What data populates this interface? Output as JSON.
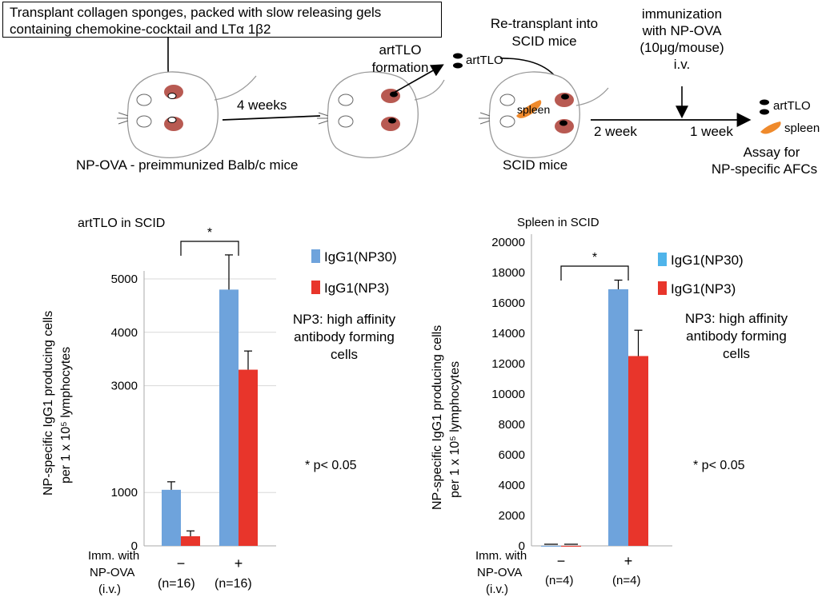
{
  "schematic": {
    "callout_line1": "Transplant collagen sponges, packed with slow releasing gels",
    "callout_line2": "containing chemokine-cocktail and LTα 1β2",
    "donor_label": "NP-OVA - preimmunized Balb/c mice",
    "weeks_4": "4 weeks",
    "artTLO_formation_1": "artTLO",
    "artTLO_formation_2": "formation",
    "artTLO_tag": "artTLO",
    "retransplant_1": "Re-transplant into",
    "retransplant_2": "SCID mice",
    "spleen_tag": "spleen",
    "scid_label": "SCID mice",
    "imm_1": "immunization",
    "imm_2": "with NP-OVA",
    "imm_3": "(10μg/mouse)",
    "imm_4": "i.v.",
    "week_2": "2 week",
    "week_1": "1 week",
    "out_artTLO": "artTLO",
    "out_spleen": "spleen",
    "assay_1": "Assay for",
    "assay_2": "NP-specific AFCs"
  },
  "colors": {
    "blue": "#6ea3dc",
    "red": "#e8352b",
    "spleen_orange": "#ef8a2c",
    "lymph_red": "#b85a52"
  },
  "chart_data": [
    {
      "type": "bar",
      "title": "artTLO in SCID",
      "ylabel_line1": "NP-specific IgG1 producing cells",
      "ylabel_line2": "per 1 x 10⁵ lymphocytes",
      "yticks": [
        "0",
        "1000",
        "3000",
        "4000",
        "5000"
      ],
      "ylim": [
        0,
        5000
      ],
      "categories": [
        "−",
        "+"
      ],
      "n_labels": [
        "(n=16)",
        "(n=16)"
      ],
      "xlabel_1": "Imm. with",
      "xlabel_2": "NP-OVA",
      "xlabel_3": "(i.v.)",
      "series": [
        {
          "name": "IgG1(NP30)",
          "values": [
            1050,
            4800
          ],
          "errors": [
            150,
            650
          ]
        },
        {
          "name": "IgG1(NP3)",
          "values": [
            180,
            3300
          ],
          "errors": [
            100,
            350
          ]
        }
      ],
      "significance": "*",
      "legend_note_1": "NP3: high affinity",
      "legend_note_2": "antibody forming",
      "legend_note_3": "cells",
      "pvalue_note": "* p< 0.05"
    },
    {
      "type": "bar",
      "title": "Spleen in SCID",
      "ylabel_line1": "NP-specific IgG1 producing cells",
      "ylabel_line2": "per 1 x 10⁵ lymphocytes",
      "yticks": [
        "0",
        "2000",
        "4000",
        "6000",
        "8000",
        "10000",
        "12000",
        "14000",
        "16000",
        "18000",
        "20000"
      ],
      "ylim": [
        0,
        20000
      ],
      "categories": [
        "−",
        "+"
      ],
      "n_labels": [
        "(n=4)",
        "(n=4)"
      ],
      "xlabel_1": "Imm. with",
      "xlabel_2": "NP-OVA",
      "xlabel_3": "(i.v.)",
      "series": [
        {
          "name": "IgG1(NP30)",
          "values": [
            0,
            16900
          ],
          "errors": [
            0,
            600
          ]
        },
        {
          "name": "IgG1(NP3)",
          "values": [
            0,
            12500
          ],
          "errors": [
            0,
            1700
          ]
        }
      ],
      "significance": "*",
      "legend_note_1": "NP3: high affinity",
      "legend_note_2": "antibody forming",
      "legend_note_3": "cells",
      "pvalue_note": "* p< 0.05"
    }
  ]
}
